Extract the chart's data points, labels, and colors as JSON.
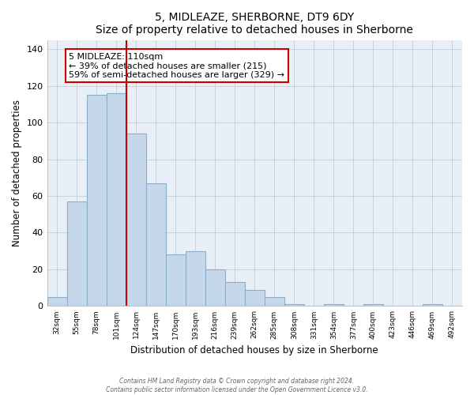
{
  "title": "5, MIDLEAZE, SHERBORNE, DT9 6DY",
  "subtitle": "Size of property relative to detached houses in Sherborne",
  "xlabel": "Distribution of detached houses by size in Sherborne",
  "ylabel": "Number of detached properties",
  "bar_labels": [
    "32sqm",
    "55sqm",
    "78sqm",
    "101sqm",
    "124sqm",
    "147sqm",
    "170sqm",
    "193sqm",
    "216sqm",
    "239sqm",
    "262sqm",
    "285sqm",
    "308sqm",
    "331sqm",
    "354sqm",
    "377sqm",
    "400sqm",
    "423sqm",
    "446sqm",
    "469sqm",
    "492sqm"
  ],
  "bar_values": [
    5,
    57,
    115,
    116,
    94,
    67,
    28,
    30,
    20,
    13,
    9,
    5,
    1,
    0,
    1,
    0,
    1,
    0,
    0,
    1,
    0
  ],
  "bar_color": "#c5d8ea",
  "bar_edge_color": "#8aaec8",
  "vline_color": "#cc0000",
  "vline_x_index": 3.5,
  "annotation_text": "5 MIDLEAZE: 110sqm\n← 39% of detached houses are smaller (215)\n59% of semi-detached houses are larger (329) →",
  "ylim": [
    0,
    145
  ],
  "yticks": [
    0,
    20,
    40,
    60,
    80,
    100,
    120,
    140
  ],
  "bg_color": "#e8eff6",
  "grid_color": "#c0cdd8",
  "footer1": "Contains HM Land Registry data © Crown copyright and database right 2024.",
  "footer2": "Contains public sector information licensed under the Open Government Licence v3.0."
}
